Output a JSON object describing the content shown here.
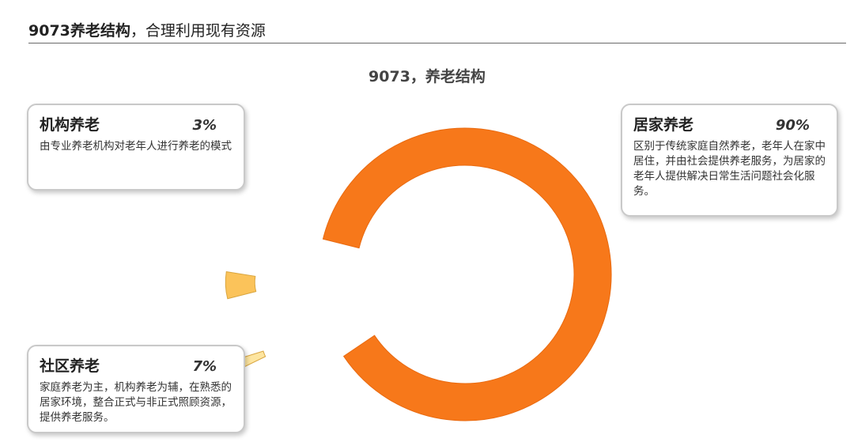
{
  "header": {
    "title_bold": "9073养老结构",
    "title_rest": "，合理利用现有资源"
  },
  "chart_data": {
    "type": "pie",
    "variant": "donut",
    "title": "9073，养老结构",
    "slices": [
      {
        "name": "居家养老",
        "value": 90,
        "label": "90%",
        "color": "#f7781a",
        "desc": "区别于传统家庭自然养老，老年人在家中居住，并由社会提供养老服务，为居家的老年人提供解决日常生活问题社会化服务。"
      },
      {
        "name": "社区养老",
        "value": 7,
        "label": "7%",
        "color": "#fbc35a",
        "desc": "家庭养老为主，机构养老为辅，在熟悉的居家环境，整合正式与非正式照顾资源，提供养老服务。"
      },
      {
        "name": "机构养老",
        "value": 3,
        "label": "3%",
        "color": "#fde5a0",
        "desc": "由专业养老机构对老年人进行养老的模式"
      }
    ]
  }
}
